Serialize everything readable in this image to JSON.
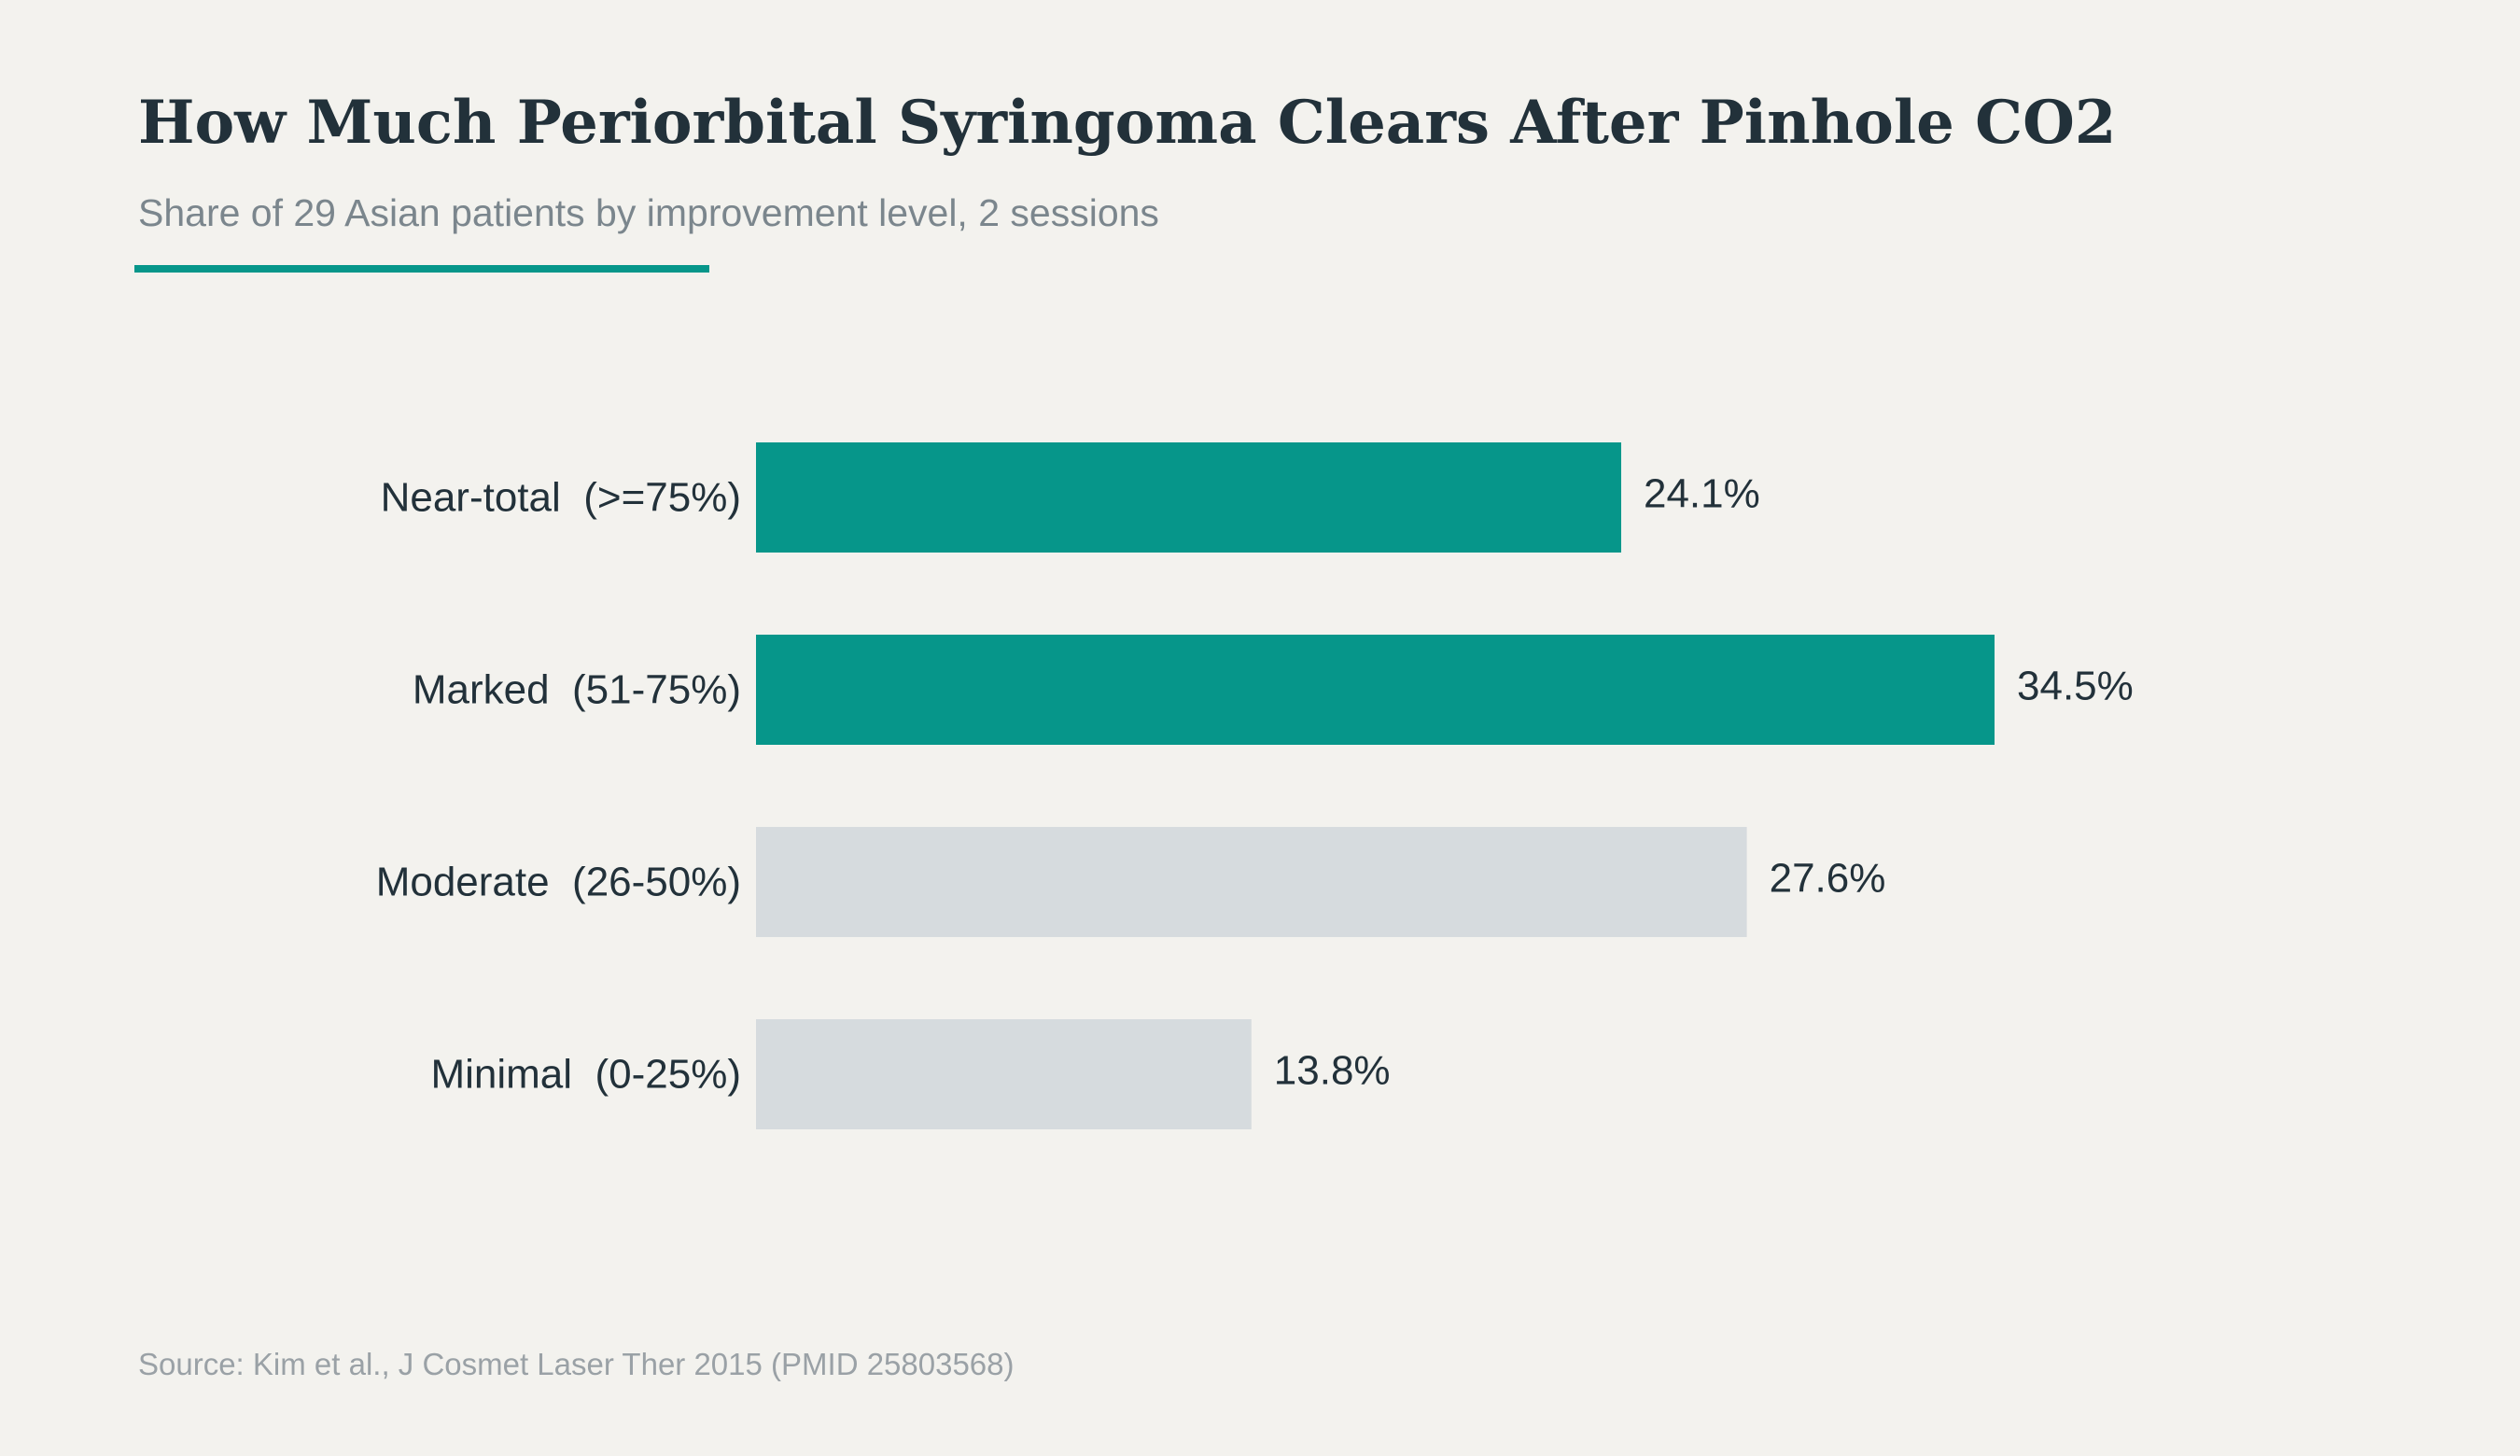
{
  "chart_data": {
    "type": "bar",
    "orientation": "horizontal",
    "title": "How Much Periorbital Syringoma Clears After Pinhole CO2",
    "subtitle": "Share of 29 Asian patients by improvement level, 2 sessions",
    "categories": [
      "Near-total  (>=75%)",
      "Marked  (51-75%)",
      "Moderate  (26-50%)",
      "Minimal  (0-25%)"
    ],
    "values": [
      24.1,
      34.5,
      27.6,
      13.8
    ],
    "value_labels": [
      "24.1%",
      "34.5%",
      "27.6%",
      "13.8%"
    ],
    "highlighted": [
      true,
      true,
      false,
      false
    ],
    "xlim": [
      0,
      34.5
    ],
    "grid": false,
    "legend": "none",
    "source": "Source: Kim et al., J Cosmet Laser Ther 2015 (PMID 25803568)"
  },
  "colors": {
    "background": "#f3f2ee",
    "highlight": "#06968a",
    "muted": "#d6dbde",
    "text": "#22313a",
    "subtitle": "#7b868d",
    "source": "#9aa1a6"
  }
}
